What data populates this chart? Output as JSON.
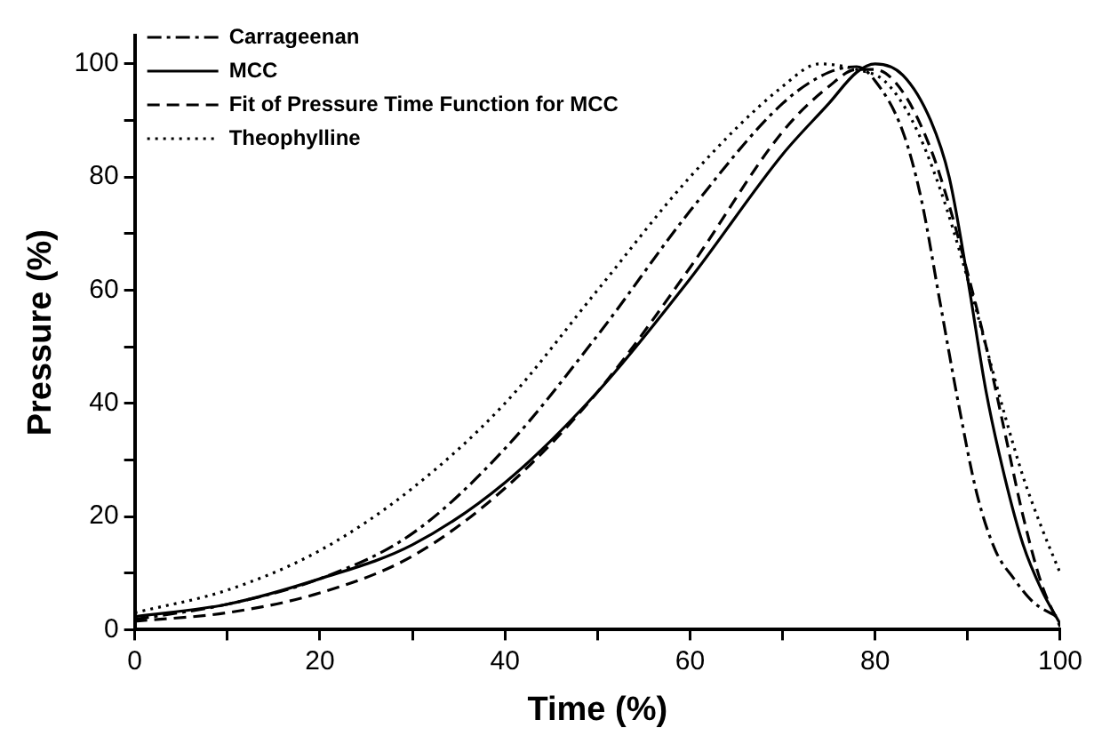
{
  "chart_data": {
    "type": "line",
    "xlabel": "Time (%)",
    "ylabel": "Pressure (%)",
    "xlim": [
      0,
      100
    ],
    "ylim": [
      0,
      105
    ],
    "xticks": [
      0,
      {
        "value": 10,
        "label": null
      },
      20,
      {
        "value": 30,
        "label": null
      },
      40,
      {
        "value": 50,
        "label": null
      },
      60,
      {
        "value": 70,
        "label": null
      },
      80,
      {
        "value": 90,
        "label": null
      },
      100
    ],
    "yticks": [
      0,
      {
        "value": 10,
        "label": null
      },
      20,
      {
        "value": 30,
        "label": null
      },
      40,
      {
        "value": 50,
        "label": null
      },
      60,
      {
        "value": 70,
        "label": null
      },
      80,
      {
        "value": 90,
        "label": null
      },
      100
    ],
    "grid": false,
    "legend": "top left",
    "marker": "none",
    "series": [
      {
        "name": "Carrageenan",
        "color": "#000000",
        "line_style": "dashdot",
        "x": [
          0,
          10,
          20,
          30,
          40,
          50,
          60,
          70,
          75,
          78,
          80,
          83,
          85,
          87,
          89,
          91,
          93,
          95,
          97,
          100
        ],
        "values": [
          1.8,
          4.5,
          9,
          17,
          32,
          52,
          74,
          93,
          98.5,
          99.5,
          97,
          88,
          76,
          58,
          40,
          24,
          14,
          9,
          5,
          2
        ]
      },
      {
        "name": "MCC",
        "color": "#000000",
        "line_style": "solid",
        "x": [
          0,
          10,
          20,
          30,
          40,
          50,
          60,
          70,
          75,
          78,
          80,
          83,
          86,
          88,
          90,
          92,
          94,
          96,
          98,
          100
        ],
        "values": [
          2.3,
          4.5,
          9,
          15,
          26,
          42,
          62,
          84,
          93,
          98.5,
          100,
          98,
          90,
          80,
          62,
          42,
          27,
          15,
          7,
          1
        ]
      },
      {
        "name": "Fit of Pressure Time Function for MCC",
        "color": "#000000",
        "line_style": "dashed",
        "x": [
          0,
          10,
          20,
          30,
          40,
          50,
          60,
          70,
          75,
          78,
          80,
          83,
          86,
          88,
          90,
          92,
          94,
          96,
          98,
          100
        ],
        "values": [
          1.5,
          3,
          6.5,
          13,
          25,
          42,
          64,
          88,
          96,
          99,
          99,
          95,
          85,
          75,
          63,
          50,
          35,
          20,
          8,
          0.5
        ]
      },
      {
        "name": "Theophylline",
        "color": "#000000",
        "line_style": "dotted",
        "x": [
          0,
          10,
          20,
          30,
          40,
          50,
          60,
          70,
          74,
          78,
          81,
          84,
          87,
          90,
          92,
          94,
          96,
          98,
          100
        ],
        "values": [
          3,
          7,
          14,
          25,
          40,
          60,
          80,
          96,
          100,
          99,
          97,
          90,
          78,
          62,
          50,
          38,
          27,
          18,
          10
        ]
      }
    ]
  }
}
